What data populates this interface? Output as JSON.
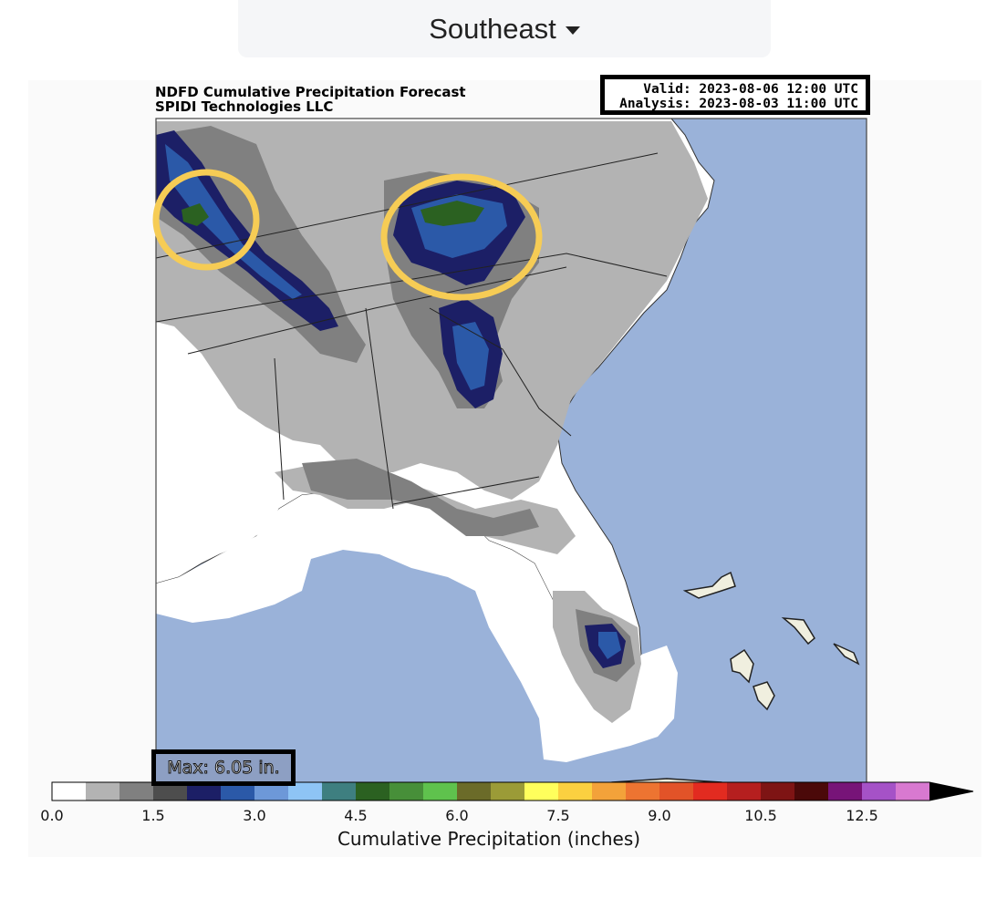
{
  "selector": {
    "value": "Southeast",
    "caret_icon": "chevron-down-icon"
  },
  "map": {
    "title_line1": "NDFD Cumulative Precipitation Forecast",
    "title_line2": "SPIDI Technologies LLC",
    "valid_text": "Valid: 2023-08-06 12:00 UTC",
    "analysis_text": "Analysis: 2023-08-03 11:00 UTC",
    "max_text": "Max: 6.05 in.",
    "highlight_color": "#f6cc55",
    "ocean_color": "#9ab2d9",
    "land_color": "#ffffff"
  },
  "colorbar": {
    "label": "Cumulative Precipitation (inches)",
    "ticks": [
      "0.0",
      "1.5",
      "3.0",
      "4.5",
      "6.0",
      "7.5",
      "9.0",
      "10.5",
      "12.5"
    ],
    "colors": [
      "#ffffff",
      "#b3b3b3",
      "#808080",
      "#4d4d4d",
      "#1c1f66",
      "#2b59a8",
      "#6d98d8",
      "#8ec4f5",
      "#3e7f80",
      "#2b6121",
      "#478f39",
      "#5fc24d",
      "#6b6b29",
      "#9b9b37",
      "#ffff5c",
      "#fbd040",
      "#f3a23a",
      "#ed7431",
      "#e25328",
      "#e22b20",
      "#b51f1f",
      "#7e1414",
      "#4b0909",
      "#771478",
      "#a552c7",
      "#d879d0"
    ]
  }
}
